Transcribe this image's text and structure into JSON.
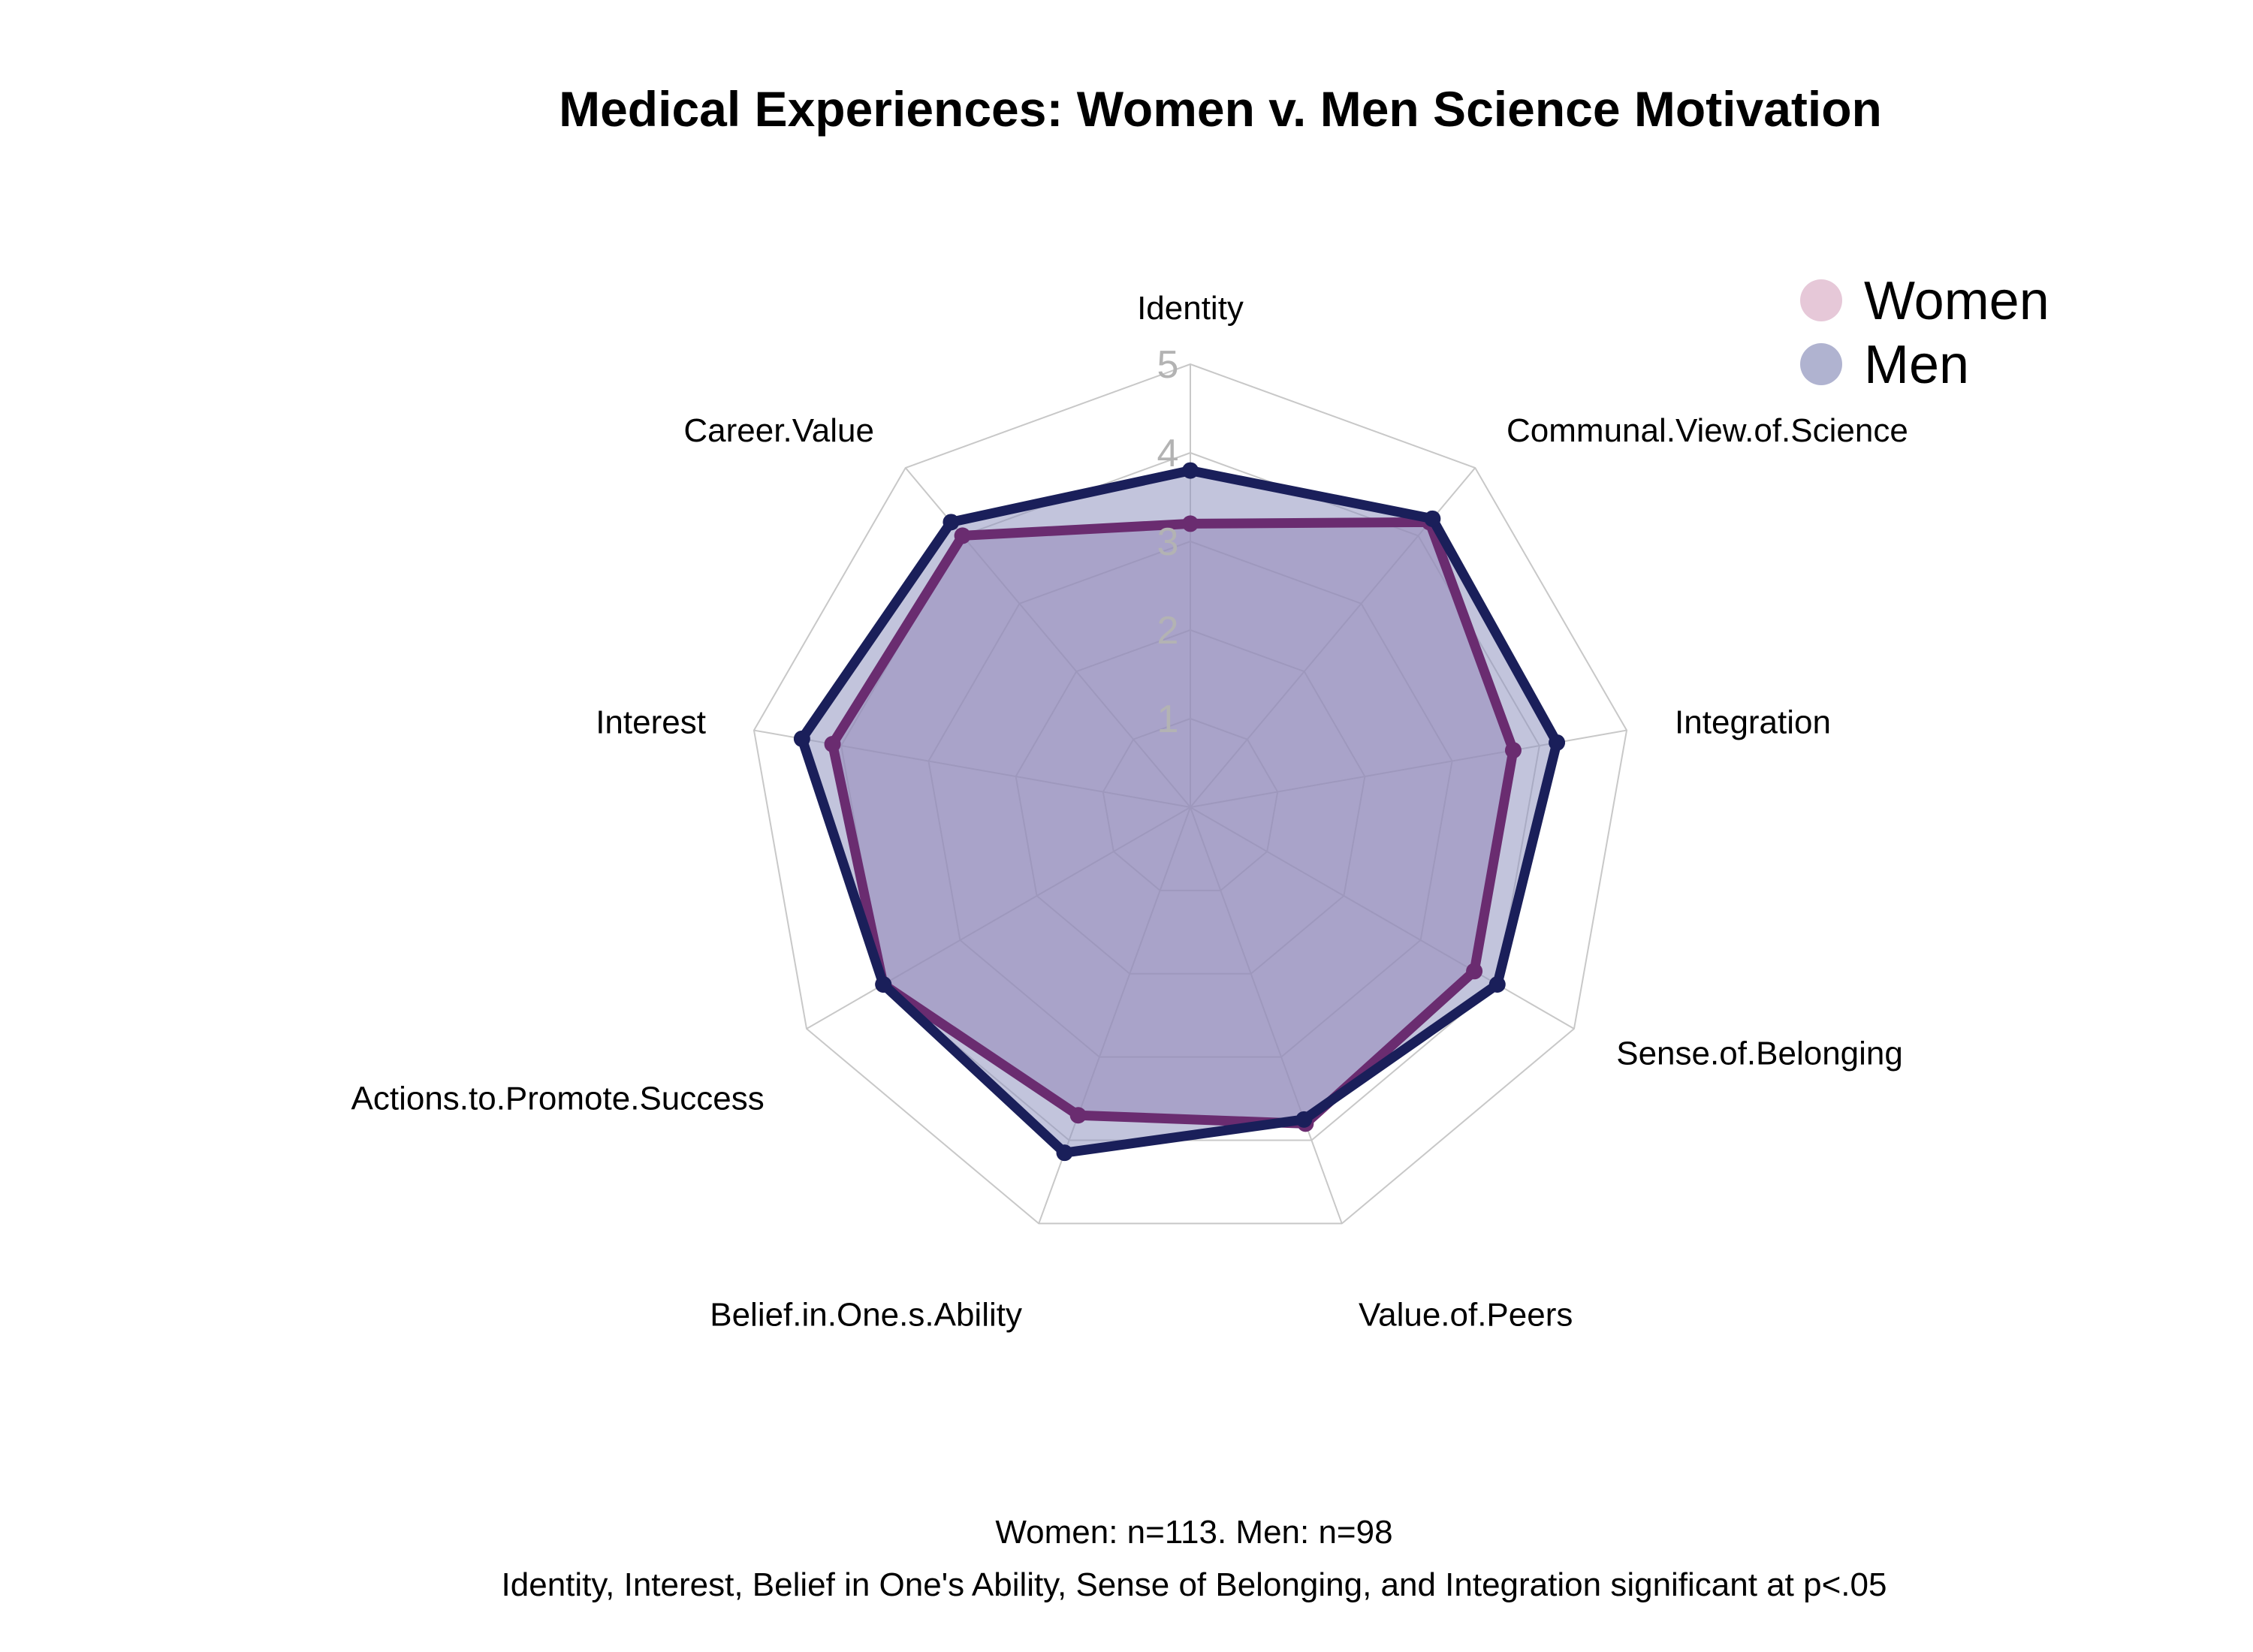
{
  "chart_data": {
    "type": "radar",
    "title": "Medical Experiences: Women v. Men Science Motivation",
    "axes": [
      "Identity",
      "Communal.View.of.Science",
      "Integration",
      "Sense.of.Belonging",
      "Value.of.Peers",
      "Belief.in.One.s.Ability",
      "Actions.to.Promote.Success",
      "Interest",
      "Career.Value"
    ],
    "rlim": [
      0,
      5
    ],
    "ticks": [
      "1",
      "2",
      "3",
      "4",
      "5"
    ],
    "grid": true,
    "legend_position": "top-right",
    "series": [
      {
        "name": "Women",
        "values": [
          3.2,
          4.2,
          3.7,
          3.7,
          3.8,
          3.7,
          4.0,
          4.1,
          4.0
        ],
        "line_color": "#6a2c70",
        "fill_color": "#9b7bb0",
        "legend_color": "#e6c8d8"
      },
      {
        "name": "Men",
        "values": [
          3.8,
          4.25,
          4.2,
          4.0,
          3.75,
          4.15,
          4.0,
          4.45,
          4.2
        ],
        "line_color": "#1a1f5a",
        "fill_color": "#8f93bf",
        "legend_color": "#b0b3d0"
      }
    ],
    "caption_lines": [
      "Women: n=113. Men: n=98",
      "Identity, Interest, Belief in One's Ability, Sense of Belonging, and Integration significant at p<.05"
    ]
  }
}
